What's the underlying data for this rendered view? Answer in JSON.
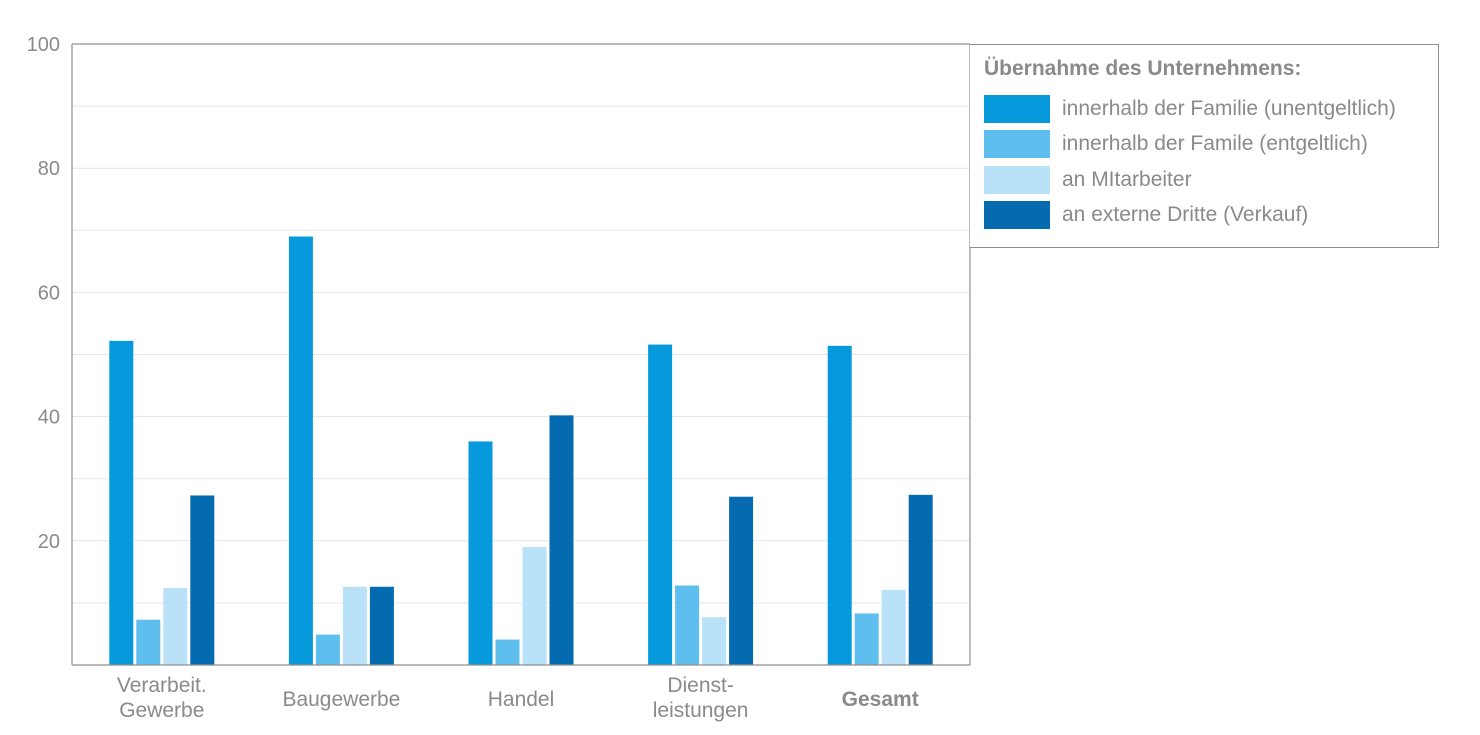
{
  "chart_data": {
    "type": "bar",
    "categories": [
      [
        "Verarbeit.",
        "Gewerbe"
      ],
      [
        "Baugewerbe"
      ],
      [
        "Handel"
      ],
      [
        "Dienst-",
        "leistungen"
      ],
      [
        "Gesamt"
      ]
    ],
    "bold_categories": [
      4
    ],
    "series": [
      {
        "name": "innerhalb der Familie (unentgeltlich)",
        "color": "#0699dc",
        "values": [
          52.2,
          69,
          36,
          51.6,
          51.4
        ]
      },
      {
        "name": "innerhalb der Famile (entgeltlich)",
        "color": "#5ebfee",
        "values": [
          7.3,
          4.9,
          4.1,
          12.8,
          8.3
        ]
      },
      {
        "name": "an MItarbeiter",
        "color": "#b9e1f8",
        "values": [
          12.4,
          12.6,
          19,
          7.7,
          12.1
        ]
      },
      {
        "name": "an externe Dritte (Verkauf)",
        "color": "#046bb0",
        "values": [
          27.3,
          12.6,
          40.2,
          27.1,
          27.4
        ]
      }
    ],
    "ylim": [
      0,
      100
    ],
    "yticks": [
      100,
      80,
      60,
      40,
      20
    ],
    "grid": true,
    "legend": {
      "title": "Übernahme des Unternehmens:",
      "placement": "top-right"
    }
  }
}
